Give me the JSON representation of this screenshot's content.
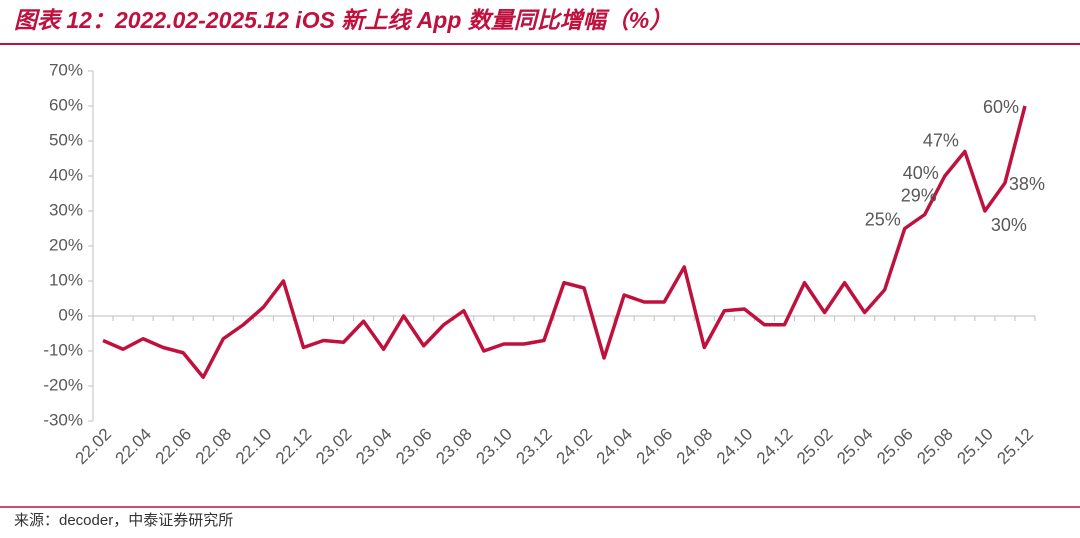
{
  "chart_data": {
    "type": "line",
    "title": "图表 12：2022.02-2025.12 iOS 新上线 App 数量同比增幅（%）",
    "source": "来源：decoder，中泰证券研究所",
    "categories": [
      "22.02",
      null,
      "22.04",
      null,
      "22.06",
      null,
      "22.08",
      null,
      "22.10",
      null,
      "22.12",
      null,
      "23.02",
      null,
      "23.04",
      null,
      "23.06",
      null,
      "23.08",
      null,
      "23.10",
      null,
      "23.12",
      null,
      "24.02",
      null,
      "24.04",
      null,
      "24.06",
      null,
      "24.08",
      null,
      "24.10",
      null,
      "24.12",
      null,
      "25.02",
      null,
      "25.04",
      null,
      "25.06",
      null,
      "25.08",
      null,
      "25.10",
      null,
      "25.12"
    ],
    "series": [
      {
        "name": "iOS 新上线 App 数量同比增幅",
        "color": "#c0103e",
        "values": [
          -7,
          -9.5,
          -6.5,
          -9,
          -10.5,
          -17.5,
          -6.5,
          -2.5,
          2.5,
          10,
          -9,
          -7,
          -7.5,
          -1.5,
          -9.5,
          0,
          -8.5,
          -2.5,
          1.5,
          -10,
          -8,
          -8,
          -7,
          9.5,
          8,
          -12,
          6,
          4,
          4,
          14,
          -9,
          1.5,
          2,
          -2.5,
          -2.5,
          9.5,
          1,
          9.5,
          1,
          7.5,
          25,
          29,
          40,
          47,
          30,
          38,
          60
        ],
        "value_labels": [
          null,
          null,
          null,
          null,
          null,
          null,
          null,
          null,
          null,
          null,
          null,
          null,
          null,
          null,
          null,
          null,
          null,
          null,
          null,
          null,
          null,
          null,
          null,
          null,
          null,
          null,
          null,
          null,
          null,
          null,
          null,
          null,
          null,
          null,
          null,
          null,
          null,
          null,
          null,
          null,
          "25%",
          "29%",
          "40%",
          "47%",
          "30%",
          "38%",
          "60%"
        ]
      }
    ],
    "ylim": [
      -30,
      70
    ],
    "yticks": [
      {
        "value": -30,
        "label": "-30%"
      },
      {
        "value": -20,
        "label": "-20%"
      },
      {
        "value": -10,
        "label": "-10%"
      },
      {
        "value": 0,
        "label": "0%"
      },
      {
        "value": 10,
        "label": "10%"
      },
      {
        "value": 20,
        "label": "20%"
      },
      {
        "value": 30,
        "label": "30%"
      },
      {
        "value": 40,
        "label": "40%"
      },
      {
        "value": 50,
        "label": "50%"
      },
      {
        "value": 60,
        "label": "60%"
      },
      {
        "value": 70,
        "label": "70%"
      }
    ],
    "grid": false
  }
}
